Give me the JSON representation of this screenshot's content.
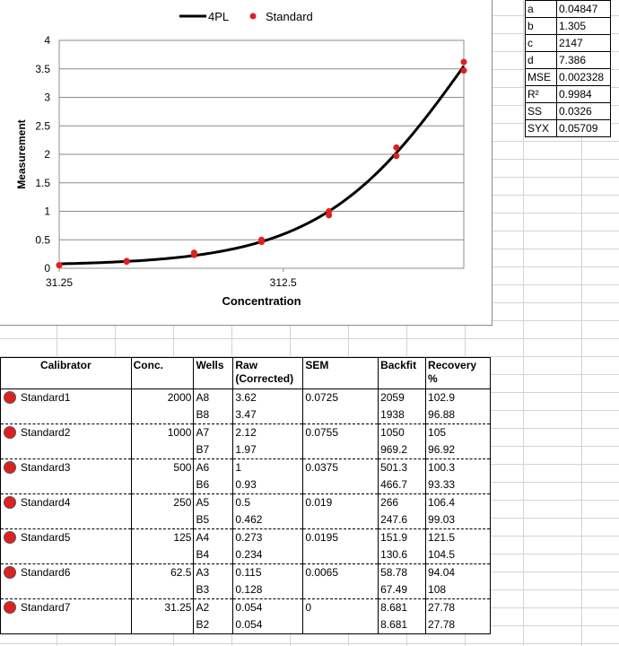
{
  "chart_data": {
    "type": "scatter",
    "xlabel": "Concentration",
    "ylabel": "Measurement",
    "x_scale": "log",
    "xlim": [
      31.25,
      2000
    ],
    "ylim": [
      0,
      4
    ],
    "x_tick_labels": [
      "31.25",
      "312.5"
    ],
    "x_ticks": [
      31.25,
      312.5
    ],
    "y_ticks": [
      0,
      0.5,
      1,
      1.5,
      2,
      2.5,
      3,
      3.5,
      4
    ],
    "y_tick_labels": [
      "0",
      "0.5",
      "1",
      "1.5",
      "2",
      "2.5",
      "3",
      "3.5",
      "4"
    ],
    "grid": true,
    "legend": "top",
    "legend_entries": [
      "4PL",
      "Standard"
    ],
    "series": [
      {
        "name": "4PL",
        "type": "line",
        "color": "#000000",
        "params": {
          "a": 0.04847,
          "b": 1.305,
          "c": 2147,
          "d": 7.386
        }
      },
      {
        "name": "Standard",
        "type": "scatter",
        "color": "#e02020",
        "x": [
          2000,
          2000,
          1000,
          1000,
          500,
          500,
          250,
          250,
          125,
          125,
          62.5,
          62.5,
          31.25,
          31.25
        ],
        "y": [
          3.62,
          3.47,
          2.12,
          1.97,
          1,
          0.93,
          0.5,
          0.462,
          0.273,
          0.234,
          0.115,
          0.128,
          0.054,
          0.054
        ]
      }
    ]
  },
  "params": [
    {
      "k": "a",
      "v": "0.04847"
    },
    {
      "k": "b",
      "v": "1.305"
    },
    {
      "k": "c",
      "v": "2147"
    },
    {
      "k": "d",
      "v": "7.386"
    },
    {
      "k": "MSE",
      "v": "0.002328"
    },
    {
      "k": "R²",
      "v": "0.9984"
    },
    {
      "k": "SS",
      "v": "0.0326"
    },
    {
      "k": "SYX",
      "v": "0.05709"
    }
  ],
  "table": {
    "headers": [
      "Calibrator",
      "Conc.",
      "Wells",
      "Raw (Corrected)",
      "SEM",
      "Backfit",
      "Recovery %"
    ],
    "dot_color": "#e02020",
    "rows": [
      {
        "name": "Standard1",
        "conc": "2000",
        "sem": "0.0725",
        "wells": [
          {
            "well": "A8",
            "raw": "3.62",
            "backfit": "2059",
            "recovery": "102.9"
          },
          {
            "well": "B8",
            "raw": "3.47",
            "backfit": "1938",
            "recovery": "96.88"
          }
        ]
      },
      {
        "name": "Standard2",
        "conc": "1000",
        "sem": "0.0755",
        "wells": [
          {
            "well": "A7",
            "raw": "2.12",
            "backfit": "1050",
            "recovery": "105"
          },
          {
            "well": "B7",
            "raw": "1.97",
            "backfit": "969.2",
            "recovery": "96.92"
          }
        ]
      },
      {
        "name": "Standard3",
        "conc": "500",
        "sem": "0.0375",
        "wells": [
          {
            "well": "A6",
            "raw": "1",
            "backfit": "501.3",
            "recovery": "100.3"
          },
          {
            "well": "B6",
            "raw": "0.93",
            "backfit": "466.7",
            "recovery": "93.33"
          }
        ]
      },
      {
        "name": "Standard4",
        "conc": "250",
        "sem": "0.019",
        "wells": [
          {
            "well": "A5",
            "raw": "0.5",
            "backfit": "266",
            "recovery": "106.4"
          },
          {
            "well": "B5",
            "raw": "0.462",
            "backfit": "247.6",
            "recovery": "99.03"
          }
        ]
      },
      {
        "name": "Standard5",
        "conc": "125",
        "sem": "0.0195",
        "wells": [
          {
            "well": "A4",
            "raw": "0.273",
            "backfit": "151.9",
            "recovery": "121.5"
          },
          {
            "well": "B4",
            "raw": "0.234",
            "backfit": "130.6",
            "recovery": "104.5"
          }
        ]
      },
      {
        "name": "Standard6",
        "conc": "62.5",
        "sem": "0.0065",
        "wells": [
          {
            "well": "A3",
            "raw": "0.115",
            "backfit": "58.78",
            "recovery": "94.04"
          },
          {
            "well": "B3",
            "raw": "0.128",
            "backfit": "67.49",
            "recovery": "108"
          }
        ]
      },
      {
        "name": "Standard7",
        "conc": "31.25",
        "sem": "0",
        "wells": [
          {
            "well": "A2",
            "raw": "0.054",
            "backfit": "8.681",
            "recovery": "27.78"
          },
          {
            "well": "B2",
            "raw": "0.054",
            "backfit": "8.681",
            "recovery": "27.78"
          }
        ]
      }
    ]
  }
}
